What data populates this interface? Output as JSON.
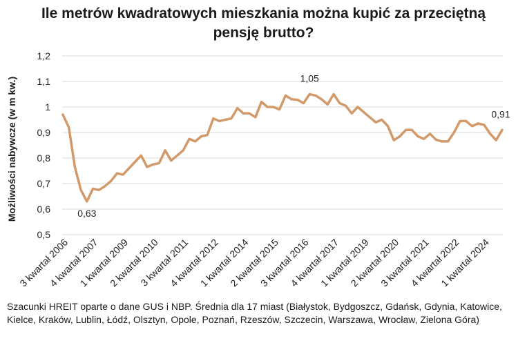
{
  "title_line1": "Ile metrów kwadratowych mieszkania można kupić za przeciętną",
  "title_line2": "pensję brutto?",
  "caption": "Szacunki HREIT oparte o dane GUS i NBP. Średnia dla 17 miast (Białystok, Bydgoszcz, Gdańsk, Gdynia, Katowice, Kielce, Kraków, Lublin, Łódź, Olsztyn, Opole, Poznań, Rzeszów, Szczecin, Warszawa, Wrocław, Zielona Góra)",
  "chart_data": {
    "type": "line",
    "title": "Ile metrów kwadratowych mieszkania można kupić za przeciętną pensję brutto?",
    "xlabel": "",
    "ylabel": "Możliwości nabywcze (w m kw.)",
    "ylim": [
      0.5,
      1.2
    ],
    "yticks": [
      "0,5",
      "0,6",
      "0,7",
      "0,8",
      "0,9",
      "1",
      "1,1",
      "1,2"
    ],
    "grid": "horizontal",
    "legend": "none",
    "line_color": "#D2996A",
    "x_tick_labels": [
      "3 kwartał 2006",
      "4 kwartał 2007",
      "1 kwartał 2009",
      "2 kwartał 2010",
      "3 kwartał 2011",
      "4 kwartał 2012",
      "1 kwartał 2014",
      "2 kwartał 2015",
      "3 kwartał 2016",
      "4 kwartał 2017",
      "1 kwartał 2019",
      "2 kwartał 2020",
      "3 kwartał 2021",
      "4 kwartał 2022",
      "1 kwartał 2024"
    ],
    "values": [
      0.97,
      0.92,
      0.765,
      0.675,
      0.63,
      0.68,
      0.675,
      0.69,
      0.71,
      0.74,
      0.735,
      0.76,
      0.785,
      0.81,
      0.765,
      0.775,
      0.78,
      0.83,
      0.79,
      0.81,
      0.83,
      0.875,
      0.865,
      0.885,
      0.89,
      0.955,
      0.945,
      0.95,
      0.955,
      0.995,
      0.975,
      0.975,
      0.96,
      1.02,
      1.0,
      1.0,
      0.99,
      1.045,
      1.03,
      1.028,
      1.015,
      1.05,
      1.045,
      1.03,
      1.01,
      1.05,
      1.015,
      1.005,
      0.975,
      1.0,
      0.98,
      0.96,
      0.94,
      0.95,
      0.925,
      0.87,
      0.885,
      0.91,
      0.91,
      0.885,
      0.875,
      0.895,
      0.872,
      0.865,
      0.865,
      0.9,
      0.945,
      0.945,
      0.925,
      0.935,
      0.93,
      0.895,
      0.87,
      0.91
    ],
    "annotations": [
      {
        "index": 4,
        "label": "0,63"
      },
      {
        "index": 41,
        "label": "1,05"
      },
      {
        "index": 73,
        "label": "0,91"
      }
    ]
  }
}
